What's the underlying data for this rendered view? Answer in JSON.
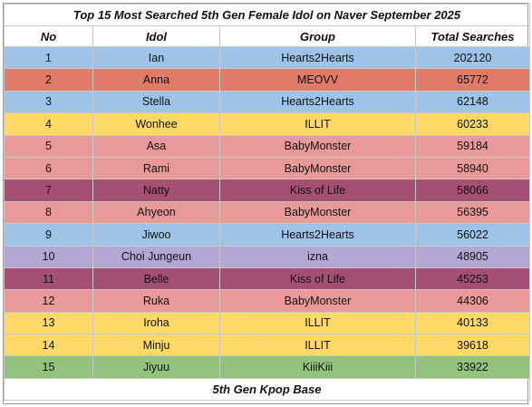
{
  "title": "Top 15 Most Searched 5th Gen Female Idol on Naver September 2025",
  "columns": [
    "No",
    "Idol",
    "Group",
    "Total Searches"
  ],
  "group_colors": {
    "Hearts2Hearts": "#9dc3e6",
    "MEOVV": "#e07b6a",
    "ILLIT": "#ffd966",
    "BabyMonster": "#e99a98",
    "Kiss of Life": "#a54f75",
    "izna": "#b4a7d6",
    "KiiiKiii": "#93c47d"
  },
  "rows": [
    {
      "no": "1",
      "idol": "Ian",
      "group": "Hearts2Hearts",
      "searches": "202120"
    },
    {
      "no": "2",
      "idol": "Anna",
      "group": "MEOVV",
      "searches": "65772"
    },
    {
      "no": "3",
      "idol": "Stella",
      "group": "Hearts2Hearts",
      "searches": "62148"
    },
    {
      "no": "4",
      "idol": "Wonhee",
      "group": "ILLIT",
      "searches": "60233"
    },
    {
      "no": "5",
      "idol": "Asa",
      "group": "BabyMonster",
      "searches": "59184"
    },
    {
      "no": "6",
      "idol": "Rami",
      "group": "BabyMonster",
      "searches": "58940"
    },
    {
      "no": "7",
      "idol": "Natty",
      "group": "Kiss of Life",
      "searches": "58066"
    },
    {
      "no": "8",
      "idol": "Ahyeon",
      "group": "BabyMonster",
      "searches": "56395"
    },
    {
      "no": "9",
      "idol": "Jiwoo",
      "group": "Hearts2Hearts",
      "searches": "56022"
    },
    {
      "no": "10",
      "idol": "Choi Jungeun",
      "group": "izna",
      "searches": "48905"
    },
    {
      "no": "11",
      "idol": "Belle",
      "group": "Kiss of Life",
      "searches": "45253"
    },
    {
      "no": "12",
      "idol": "Ruka",
      "group": "BabyMonster",
      "searches": "44306"
    },
    {
      "no": "13",
      "idol": "Iroha",
      "group": "ILLIT",
      "searches": "40133"
    },
    {
      "no": "14",
      "idol": "Minju",
      "group": "ILLIT",
      "searches": "39618"
    },
    {
      "no": "15",
      "idol": "Jiyuu",
      "group": "KiiiKiii",
      "searches": "33922"
    }
  ],
  "footer": "5th Gen Kpop Base"
}
